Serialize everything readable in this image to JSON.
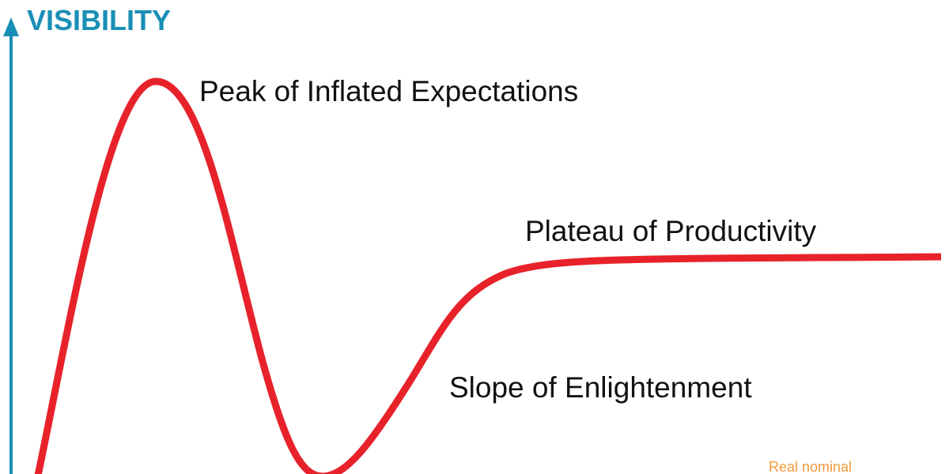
{
  "y_axis": {
    "label": "VISIBILITY"
  },
  "phases": [
    {
      "label": "Peak of Inflated Expectations"
    },
    {
      "label": "Plateau of Productivity"
    },
    {
      "label": "Slope of Enlightenment"
    }
  ],
  "credit": "Real nominal"
}
